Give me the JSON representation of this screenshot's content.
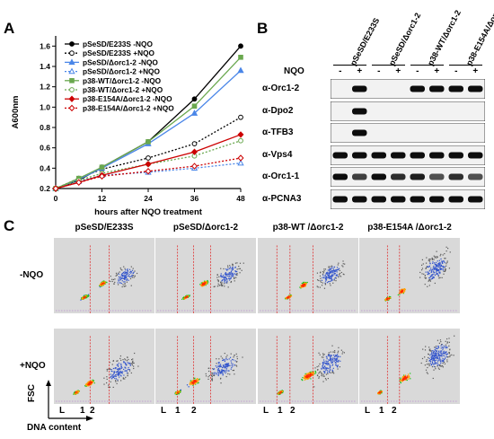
{
  "panel_a": {
    "letter": "A",
    "chart_data": {
      "type": "line",
      "x": [
        0,
        6,
        12,
        24,
        36,
        48
      ],
      "xticks": [
        "0",
        "12",
        "24",
        "36",
        "48"
      ],
      "yticks": [
        "0.2",
        "0.4",
        "0.6",
        "0.8",
        "1.0",
        "1.2",
        "1.4",
        "1.6"
      ],
      "xlabel": "hours after NQO treatment",
      "ylabel": "A600nm",
      "xlim": [
        0,
        48
      ],
      "ylim": [
        0.2,
        1.7
      ],
      "legend_position": "top-left",
      "series": [
        {
          "name": "pSeSD/E233S -NQO",
          "color": "#000000",
          "dashed": false,
          "marker": "circle",
          "filled": true,
          "values": [
            0.2,
            0.28,
            0.41,
            0.66,
            1.08,
            1.6
          ]
        },
        {
          "name": "pSeSD/E233S +NQO",
          "color": "#000000",
          "dashed": true,
          "marker": "circle",
          "filled": false,
          "values": [
            0.2,
            0.3,
            0.39,
            0.5,
            0.64,
            0.9
          ]
        },
        {
          "name": "pSeSD/Δorc1-2 -NQO",
          "color": "#4a86e8",
          "dashed": false,
          "marker": "triangle",
          "filled": true,
          "values": [
            0.2,
            0.29,
            0.4,
            0.64,
            0.94,
            1.36
          ]
        },
        {
          "name": "pSeSD/Δorc1-2 +NQO",
          "color": "#4a86e8",
          "dashed": true,
          "marker": "triangle",
          "filled": false,
          "values": [
            0.2,
            0.27,
            0.33,
            0.36,
            0.4,
            0.45
          ]
        },
        {
          "name": "p38-WT/Δorc1-2 -NQO",
          "color": "#6aa84f",
          "dashed": false,
          "marker": "square",
          "filled": true,
          "values": [
            0.2,
            0.3,
            0.41,
            0.66,
            1.01,
            1.49
          ]
        },
        {
          "name": "p38-WT/Δorc1-2 +NQO",
          "color": "#6aa84f",
          "dashed": true,
          "marker": "circle",
          "filled": false,
          "values": [
            0.2,
            0.28,
            0.35,
            0.44,
            0.52,
            0.67
          ]
        },
        {
          "name": "p38-E154A/Δorc1-2 -NQO",
          "color": "#cc0000",
          "dashed": false,
          "marker": "diamond",
          "filled": true,
          "values": [
            0.2,
            0.26,
            0.33,
            0.44,
            0.56,
            0.73
          ]
        },
        {
          "name": "p38-E154A/Δorc1-2 +NQO",
          "color": "#cc0000",
          "dashed": true,
          "marker": "diamond",
          "filled": false,
          "values": [
            0.2,
            0.26,
            0.32,
            0.37,
            0.42,
            0.5
          ]
        }
      ]
    }
  },
  "panel_b": {
    "letter": "B",
    "treatment_label": "NQO",
    "lanes": [
      "-",
      "+",
      "-",
      "+",
      "-",
      "+",
      "-",
      "+"
    ],
    "strains": [
      "pSeSD/E233S",
      "pSeSD/Δorc1-2",
      "p38-WT/Δorc1-2",
      "p38-E154A/Δorc1-2"
    ],
    "blots": [
      {
        "label": "α-Orc1-2",
        "bands": [
          0,
          1,
          0,
          0,
          1,
          1,
          1,
          1
        ]
      },
      {
        "label": "α-Dpo2",
        "bands": [
          0,
          1,
          0,
          0,
          0,
          0,
          0,
          0
        ]
      },
      {
        "label": "α-TFB3",
        "bands": [
          0,
          1,
          0,
          0,
          0,
          0,
          0,
          0
        ]
      },
      {
        "label": "α-Vps4",
        "bands": [
          1,
          1,
          1,
          1,
          1,
          1,
          1,
          1
        ]
      },
      {
        "label": "α-Orc1-1",
        "bands": [
          1,
          0.7,
          1,
          0.8,
          0.9,
          0.6,
          0.8,
          0.6
        ]
      },
      {
        "label": "α-PCNA3",
        "bands": [
          1,
          1,
          1,
          1,
          1,
          1,
          1,
          1
        ]
      }
    ]
  },
  "panel_c": {
    "letter": "C",
    "columns": [
      "pSeSD/E233S",
      "pSeSD/Δorc1-2",
      "p38-WT /Δorc1-2",
      "p38-E154A /Δorc1-2"
    ],
    "rows": [
      "-NQO",
      "+NQO"
    ],
    "yaxis_label": "FSC",
    "xaxis_label": "DNA content",
    "gate_labels": [
      "L",
      "1",
      "2"
    ]
  }
}
